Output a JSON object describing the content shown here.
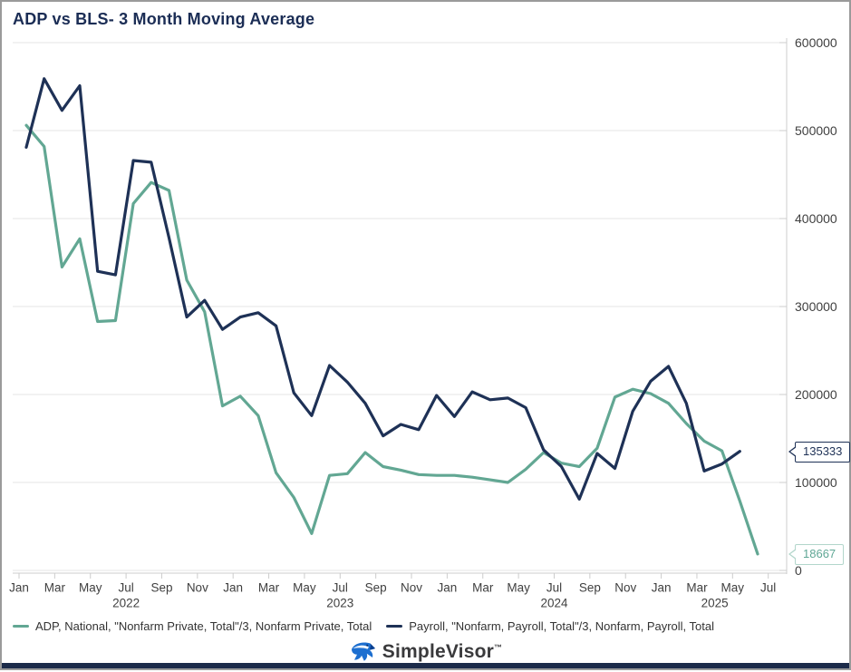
{
  "header": {
    "title": "ADP vs BLS- 3 Month Moving Average"
  },
  "chart_data": {
    "type": "line",
    "title": "ADP vs BLS- 3 Month Moving Average",
    "xlabel": "",
    "ylabel": "",
    "ylim": [
      0,
      600000
    ],
    "grid": true,
    "legend_position": "bottom",
    "x_start": "Jan 2022",
    "x_categories": [
      "Jan 2022",
      "Feb 2022",
      "Mar 2022",
      "Apr 2022",
      "May 2022",
      "Jun 2022",
      "Jul 2022",
      "Aug 2022",
      "Sep 2022",
      "Oct 2022",
      "Nov 2022",
      "Dec 2022",
      "Jan 2023",
      "Feb 2023",
      "Mar 2023",
      "Apr 2023",
      "May 2023",
      "Jun 2023",
      "Jul 2023",
      "Aug 2023",
      "Sep 2023",
      "Oct 2023",
      "Nov 2023",
      "Dec 2023",
      "Jan 2024",
      "Feb 2024",
      "Mar 2024",
      "Apr 2024",
      "May 2024",
      "Jun 2024",
      "Jul 2024",
      "Aug 2024",
      "Sep 2024",
      "Oct 2024",
      "Nov 2024",
      "Dec 2024",
      "Jan 2025",
      "Feb 2025",
      "Mar 2025",
      "Apr 2025",
      "May 2025",
      "Jun 2025"
    ],
    "series": [
      {
        "name": "ADP, National, \"Nonfarm Private, Total\"/3, Nonfarm Private, Total",
        "color": "#62a793",
        "values": [
          506000,
          482000,
          345000,
          377000,
          283000,
          284000,
          417000,
          441000,
          432000,
          330000,
          294000,
          187000,
          198000,
          176000,
          111000,
          83000,
          42000,
          108000,
          110000,
          134000,
          118000,
          114000,
          109000,
          108000,
          108000,
          106000,
          103000,
          100000,
          115000,
          134000,
          122000,
          118000,
          139000,
          197000,
          206000,
          201000,
          190000,
          167000,
          147000,
          136000,
          79000,
          18667
        ]
      },
      {
        "name": "Payroll, \"Nonfarm, Payroll, Total\"/3, Nonfarm, Payroll, Total",
        "color": "#1e3156",
        "values": [
          481000,
          559000,
          523000,
          551000,
          340000,
          336000,
          466000,
          464000,
          378000,
          288000,
          307000,
          274000,
          288000,
          293000,
          278000,
          202000,
          176000,
          233000,
          214000,
          190000,
          153000,
          166000,
          160000,
          199000,
          175000,
          203000,
          194000,
          196000,
          185000,
          137000,
          118000,
          81000,
          133000,
          116000,
          181000,
          215000,
          232000,
          190000,
          113000,
          121000,
          135333,
          null
        ]
      }
    ],
    "y_ticks": [
      {
        "value": 0,
        "label": "0"
      },
      {
        "value": 100000,
        "label": "100000"
      },
      {
        "value": 200000,
        "label": "200000"
      },
      {
        "value": 300000,
        "label": "300000"
      },
      {
        "value": 400000,
        "label": "400000"
      },
      {
        "value": 500000,
        "label": "500000"
      },
      {
        "value": 600000,
        "label": "600000"
      }
    ],
    "x_ticks": [
      {
        "month": 0,
        "label": "Jan"
      },
      {
        "month": 2,
        "label": "Mar"
      },
      {
        "month": 4,
        "label": "May"
      },
      {
        "month": 6,
        "label": "Jul"
      },
      {
        "month": 8,
        "label": "Sep"
      },
      {
        "month": 10,
        "label": "Nov"
      },
      {
        "month": 12,
        "label": "Jan"
      },
      {
        "month": 14,
        "label": "Mar"
      },
      {
        "month": 16,
        "label": "May"
      },
      {
        "month": 18,
        "label": "Jul"
      },
      {
        "month": 20,
        "label": "Sep"
      },
      {
        "month": 22,
        "label": "Nov"
      },
      {
        "month": 24,
        "label": "Jan"
      },
      {
        "month": 26,
        "label": "Mar"
      },
      {
        "month": 28,
        "label": "May"
      },
      {
        "month": 30,
        "label": "Jul"
      },
      {
        "month": 32,
        "label": "Sep"
      },
      {
        "month": 34,
        "label": "Nov"
      },
      {
        "month": 36,
        "label": "Jan"
      },
      {
        "month": 38,
        "label": "Mar"
      },
      {
        "month": 40,
        "label": "May"
      },
      {
        "month": 42,
        "label": "Jul"
      }
    ],
    "year_labels": [
      {
        "month": 6,
        "label": "2022"
      },
      {
        "month": 18,
        "label": "2023"
      },
      {
        "month": 30,
        "label": "2024"
      },
      {
        "month": 39,
        "label": "2025"
      }
    ],
    "callouts": [
      {
        "value": 135333,
        "label": "135333",
        "text_color": "#1e3156",
        "border_color": "#1e3156"
      },
      {
        "value": 18667,
        "label": "18667",
        "text_color": "#5fa795",
        "border_color": "#b2d6cb"
      }
    ]
  },
  "legend": {
    "items": [
      {
        "label": "ADP, National, \"Nonfarm Private, Total\"/3, Nonfarm Private, Total",
        "color": "#62a793"
      },
      {
        "label": "Payroll, \"Nonfarm, Payroll, Total\"/3, Nonfarm, Payroll, Total",
        "color": "#1e3156"
      }
    ]
  },
  "footer": {
    "brand": "SimpleVisor",
    "trademark": "™"
  },
  "colors": {
    "title": "#1b2d55",
    "adp_line": "#62a793",
    "payroll_line": "#1e3156",
    "gridline": "#e6e6e6",
    "axis_line": "#cccccc",
    "axis_text": "#404040",
    "bottom_bar": "#1c2b4a"
  }
}
